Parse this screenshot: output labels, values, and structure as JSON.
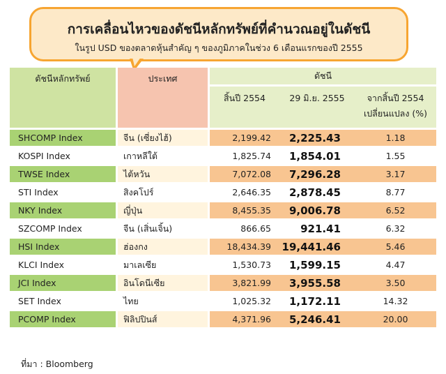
{
  "header": {
    "title": "การเคลื่อนไหวของดัชนีหลักทรัพย์ที่คำนวณอยู่ในดัชนี",
    "subtitle": "ในรูป USD ของตลาดหุ้นสำคัญ ๆ ของภูมิภาคในช่วง 6 เดือนแรกของปี 2555"
  },
  "table": {
    "col_index": "ดัชนีหลักทรัพย์",
    "col_country": "ประเทศ",
    "col_group": "ดัชนี",
    "col_end2554": "สิ้นปี 2554",
    "col_date": "29 มิ.ย. 2555",
    "col_change_l1": "จากสิ้นปี 2554",
    "col_change_l2": "เปลี่ยนแปลง (%)",
    "rows": [
      {
        "index": "SHCOMP Index",
        "country": "จีน (เซี่ยงไฮ้)",
        "end2554": "2,199.42",
        "jun2555": "2,225.43",
        "change": "1.18"
      },
      {
        "index": "KOSPI Index",
        "country": "เกาหลีใต้",
        "end2554": "1,825.74",
        "jun2555": "1,854.01",
        "change": "1.55"
      },
      {
        "index": "TWSE Index",
        "country": "ไต้หวัน",
        "end2554": "7,072.08",
        "jun2555": "7,296.28",
        "change": "3.17"
      },
      {
        "index": "STI Index",
        "country": "สิงคโปร์",
        "end2554": "2,646.35",
        "jun2555": "2,878.45",
        "change": "8.77"
      },
      {
        "index": "NKY Index",
        "country": "ญี่ปุ่น",
        "end2554": "8,455.35",
        "jun2555": "9,006.78",
        "change": "6.52"
      },
      {
        "index": "SZCOMP Index",
        "country": "จีน (เสิ่นเจิ้น)",
        "end2554": "866.65",
        "jun2555": "921.41",
        "change": "6.32"
      },
      {
        "index": "HSI Index",
        "country": "ฮ่องกง",
        "end2554": "18,434.39",
        "jun2555": "19,441.46",
        "change": "5.46"
      },
      {
        "index": "KLCI Index",
        "country": "มาเลเซีย",
        "end2554": "1,530.73",
        "jun2555": "1,599.15",
        "change": "4.47"
      },
      {
        "index": "JCI Index",
        "country": "อินโดนีเซีย",
        "end2554": "3,821.99",
        "jun2555": "3,955.58",
        "change": "3.50"
      },
      {
        "index": "SET Index",
        "country": "ไทย",
        "end2554": "1,025.32",
        "jun2555": "1,172.11",
        "change": "14.32"
      },
      {
        "index": "PCOMP Index",
        "country": "ฟิลิปปินส์",
        "end2554": "4,371.96",
        "jun2555": "5,246.41",
        "change": "20.00"
      }
    ]
  },
  "source": "ที่มา : Bloomberg",
  "colors": {
    "callout_border": "#f7a531",
    "callout_fill": "#fde9c8",
    "index_green": "#a9d273",
    "value_orange": "#f8c591",
    "country_header": "#f6c4af"
  }
}
